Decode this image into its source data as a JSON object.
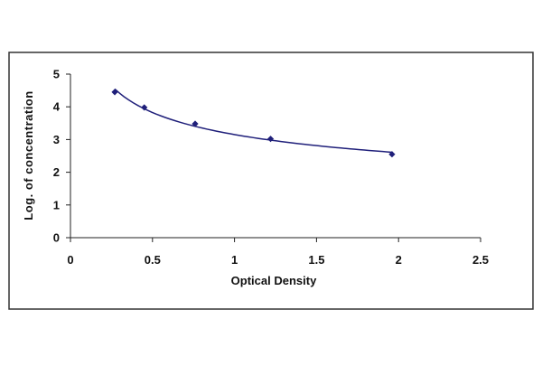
{
  "chart_data": {
    "type": "scatter",
    "title": "",
    "xlabel": "Optical Density",
    "ylabel": "Log. of concentration",
    "xlim": [
      0,
      2.5
    ],
    "ylim": [
      0,
      5
    ],
    "x_ticks": [
      0,
      0.5,
      1,
      1.5,
      2,
      2.5
    ],
    "x_tick_labels": [
      "0",
      "0.5",
      "1",
      "1.5",
      "2",
      "2.5"
    ],
    "y_ticks": [
      0,
      1,
      2,
      3,
      4,
      5
    ],
    "y_tick_labels": [
      "0",
      "1",
      "2",
      "3",
      "4",
      "5"
    ],
    "grid": false,
    "legend": "none",
    "series": [
      {
        "x": [
          0.27,
          0.45,
          0.76,
          1.22,
          1.96
        ],
        "y": [
          4.45,
          3.98,
          3.48,
          3.02,
          2.55
        ],
        "marker": "diamond",
        "color": "#1f1f7a",
        "trendline": "power"
      }
    ],
    "colors": {
      "frame": "#333333",
      "axis": "#222222",
      "marker": "#1f1f7a",
      "line": "#1f1f7a"
    }
  }
}
